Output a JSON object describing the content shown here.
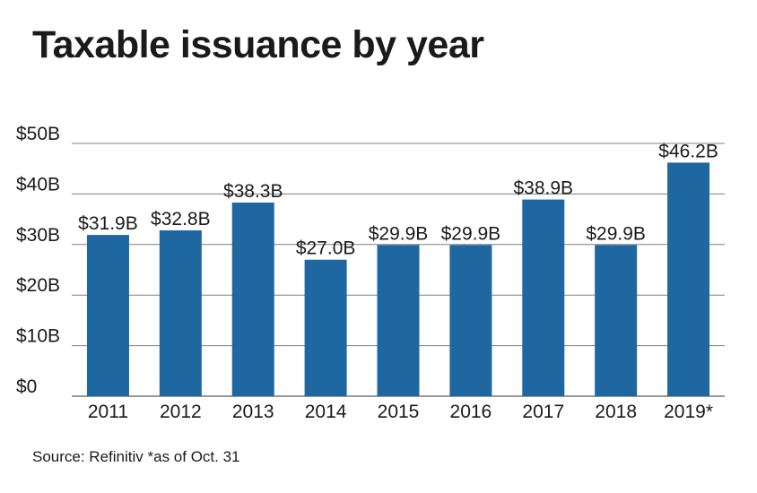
{
  "chart_data": {
    "type": "bar",
    "title": "Taxable issuance by year",
    "categories": [
      "2011",
      "2012",
      "2013",
      "2014",
      "2015",
      "2016",
      "2017",
      "2018",
      "2019*"
    ],
    "values": [
      31.9,
      32.8,
      38.3,
      27.0,
      29.9,
      29.9,
      38.9,
      29.9,
      46.2
    ],
    "data_labels": [
      "$31.9B",
      "$32.8B",
      "$38.3B",
      "$27.0B",
      "$29.9B",
      "$29.9B",
      "$38.9B",
      "$29.9B",
      "$46.2B"
    ],
    "ylim": [
      0,
      50
    ],
    "yticks": [
      0,
      10,
      20,
      30,
      40,
      50
    ],
    "ytick_labels": [
      "$0",
      "$10B",
      "$20B",
      "$30B",
      "$40B",
      "$50B"
    ],
    "xlabel": "",
    "ylabel": "",
    "grid": true,
    "bar_color": "#1f67a0",
    "source": "Source: Refinitiv *as of Oct. 31"
  }
}
